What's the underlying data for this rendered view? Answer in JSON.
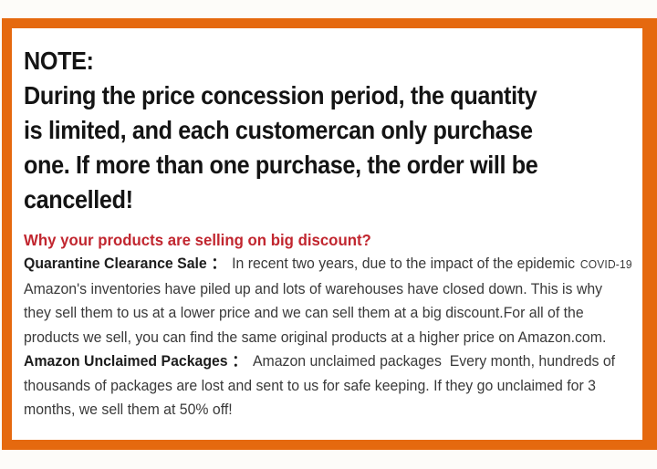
{
  "colors": {
    "border_orange": "#e5690f",
    "heading_red": "#c1262f",
    "note_black": "#141414",
    "body_gray": "#3a3a3a",
    "label_black": "#1d1d1d",
    "page_bg": "#fdfcf9"
  },
  "note": {
    "title": "NOTE:",
    "lines": [
      "During the price concession period, the quantity",
      "is limited, and each customercan only purchase",
      "one. If more than one purchase, the order will be",
      "cancelled!"
    ]
  },
  "discount": {
    "heading": "Why your products are selling on big discount?",
    "quarantine": {
      "label": "Quarantine Clearance Sale",
      "colon": "：",
      "intro": "In recent two years, due to the impact of the epidemic",
      "covid": "COVID-19",
      "lines": [
        "Amazon's inventories have piled up and lots of warehouses have closed down. This is why",
        "they sell them to us at a lower price and we can sell them at a big discount.For all of the",
        "products we sell, you can find the same original products at a higher price on Amazon.com."
      ]
    },
    "unclaimed": {
      "label": "Amazon Unclaimed Packages",
      "colon": "：",
      "rest": "Amazon unclaimed packages  Every month, hundreds of",
      "lines": [
        "thousands of packages are lost and sent to us for safe keeping. If they go unclaimed for 3",
        "months, we sell them at 50% off!"
      ]
    }
  }
}
